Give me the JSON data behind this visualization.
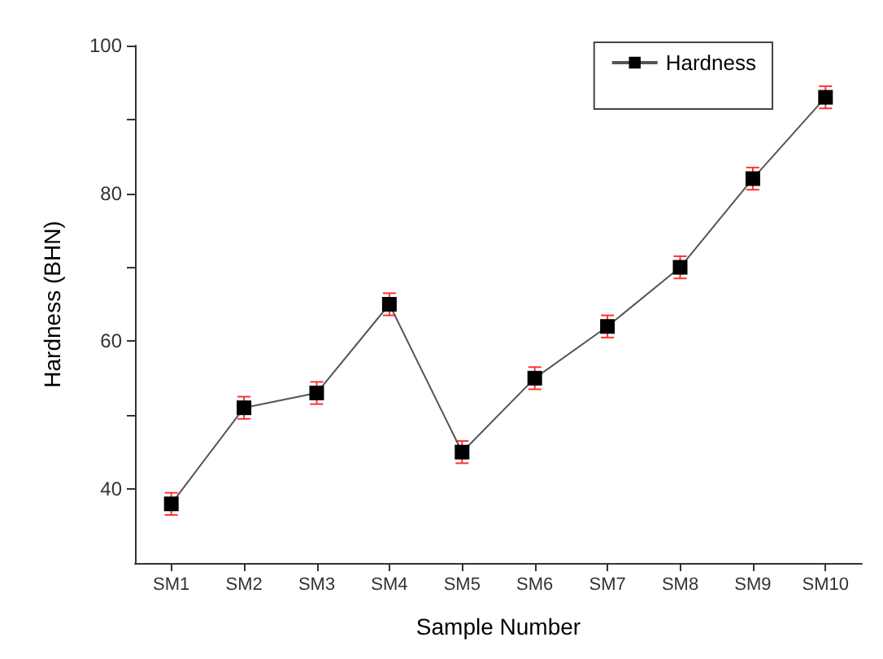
{
  "chart_data": {
    "type": "line",
    "xlabel": "Sample Number",
    "ylabel": "Hardness (BHN)",
    "categories": [
      "SM1",
      "SM2",
      "SM3",
      "SM4",
      "SM5",
      "SM6",
      "SM7",
      "SM8",
      "SM9",
      "SM10"
    ],
    "series": [
      {
        "name": "Hardness",
        "color": "#000000",
        "values": [
          38,
          51,
          53,
          65,
          45,
          55,
          62,
          70,
          82,
          93
        ],
        "errors": [
          1.5,
          1.5,
          1.5,
          1.5,
          1.5,
          1.5,
          1.5,
          1.5,
          1.5,
          1.5
        ]
      }
    ],
    "ylim": [
      30,
      100
    ],
    "yticks": [
      40,
      {
        "value": 50,
        "label": null
      },
      60,
      {
        "value": 70,
        "label": null
      },
      80,
      {
        "value": 90,
        "label": null
      },
      100
    ],
    "marker": "square",
    "legend": "top right",
    "grid": false
  }
}
